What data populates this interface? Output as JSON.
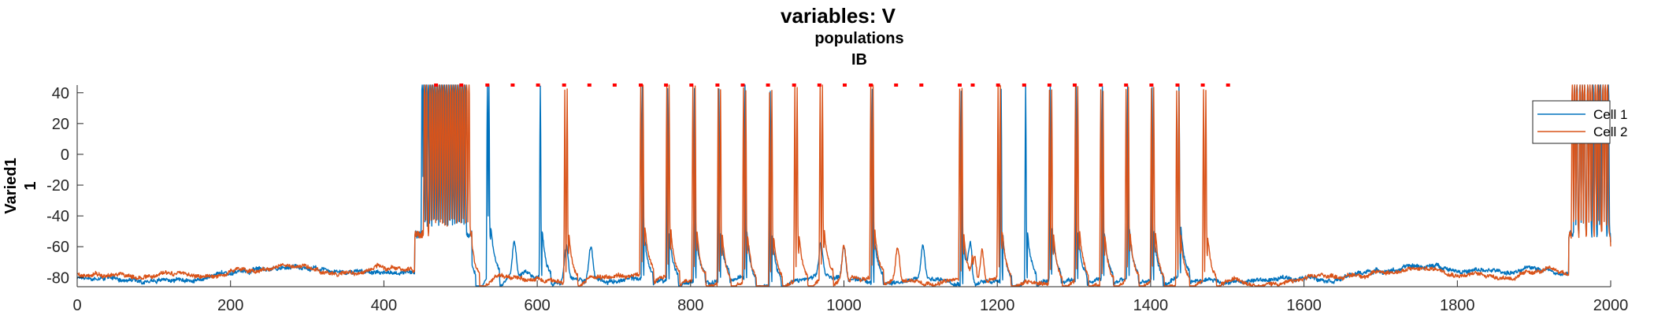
{
  "chart_data": {
    "type": "line",
    "title": "variables: V",
    "subtitle": "populations",
    "population": "IB",
    "xlabel": "",
    "ylabel": "Varied1",
    "ylabel_sub": "1",
    "xlim": [
      0,
      2000
    ],
    "ylim": [
      -86,
      45
    ],
    "x_ticks": [
      0,
      200,
      400,
      600,
      800,
      1000,
      1200,
      1400,
      1600,
      1800,
      2000
    ],
    "y_ticks": [
      -80,
      -60,
      -40,
      -20,
      0,
      20,
      40
    ],
    "grid": false,
    "legend": {
      "position": "top-right",
      "entries": [
        "Cell 1",
        "Cell 2"
      ]
    },
    "colors": {
      "Cell 1": "#0072BD",
      "Cell 2": "#D95319",
      "markers": "#FF0000"
    },
    "series": [
      {
        "name": "Cell 1",
        "color": "#0072BD",
        "baseline_start": -80,
        "baseline_end": -82,
        "spikes": [
          450,
          452,
          455,
          458,
          461,
          464,
          467,
          470,
          473,
          476,
          479,
          482,
          485,
          488,
          491,
          494,
          497,
          500,
          503,
          506,
          535,
          537,
          604,
          737,
          770,
          805,
          837,
          871,
          904,
          1037,
          1153,
          1205,
          1237,
          1269,
          1303,
          1337,
          1370,
          1402,
          1437,
          1953,
          1956,
          1960,
          1963,
          1966,
          1970,
          1973,
          1977,
          1980,
          1984,
          1987,
          1990,
          1993,
          1997
        ],
        "subthreshold_bumps": [
          570,
          638,
          670,
          970,
          1000,
          1103,
          1165
        ]
      },
      {
        "name": "Cell 2",
        "color": "#D95319",
        "baseline_start": -78,
        "baseline_end": -84,
        "spikes": [
          453,
          456,
          460,
          463,
          466,
          469,
          472,
          475,
          478,
          481,
          484,
          487,
          490,
          493,
          496,
          499,
          502,
          505,
          508,
          511,
          636,
          639,
          735,
          738,
          769,
          772,
          803,
          806,
          836,
          839,
          869,
          872,
          903,
          906,
          936,
          939,
          969,
          972,
          1035,
          1038,
          1151,
          1154,
          1201,
          1204,
          1268,
          1271,
          1302,
          1305,
          1335,
          1338,
          1368,
          1371,
          1401,
          1404,
          1434,
          1437,
          1469,
          1472,
          1950,
          1953,
          1956,
          1960,
          1963,
          1966,
          1970,
          1973,
          1976,
          1980,
          1983,
          1986,
          1990,
          1993,
          1996
        ],
        "subthreshold_bumps": [
          1000,
          1070,
          1170,
          1180
        ]
      }
    ],
    "spike_markers": {
      "y": 45,
      "x": [
        468,
        501,
        535,
        568,
        601,
        635,
        668,
        701,
        735,
        768,
        801,
        835,
        868,
        901,
        935,
        968,
        1001,
        1035,
        1068,
        1101,
        1151,
        1168,
        1201,
        1235,
        1268,
        1301,
        1335,
        1368,
        1401,
        1435,
        1468,
        1501
      ]
    }
  }
}
